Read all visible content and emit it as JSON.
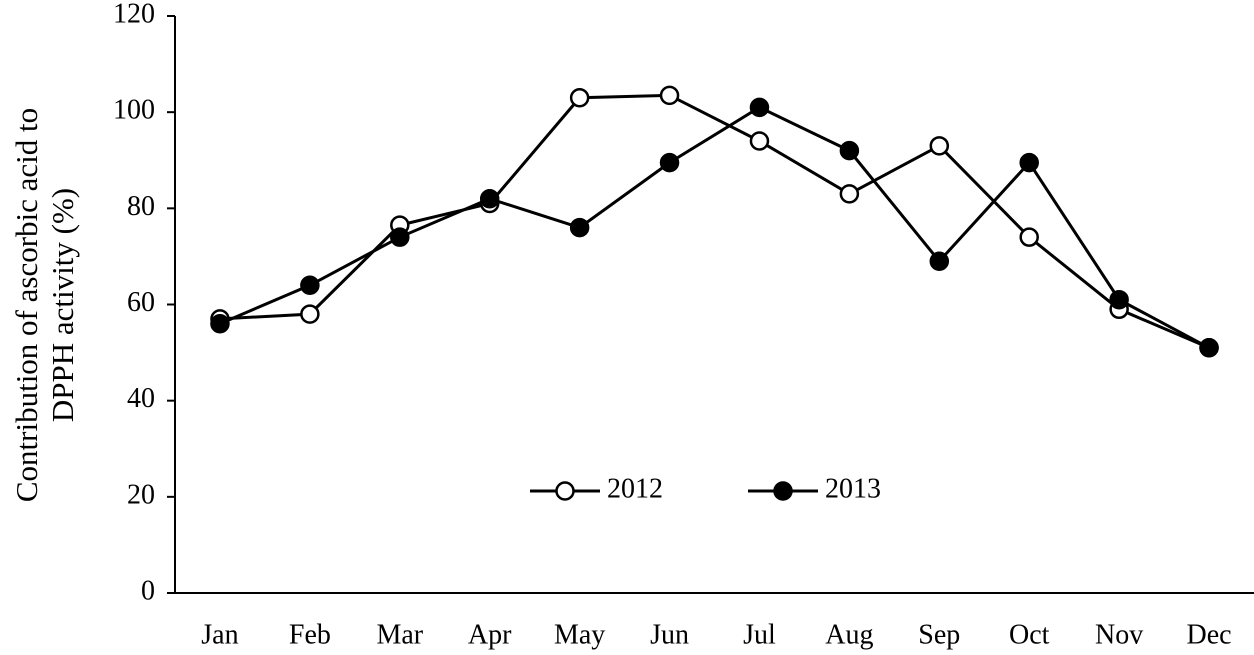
{
  "chart_data": {
    "type": "line",
    "y_label": [
      "Contribution of ascorbic acid to",
      "DPPH activity (%)"
    ],
    "categories": [
      "Jan",
      "Feb",
      "Mar",
      "Apr",
      "May",
      "Jun",
      "Jul",
      "Aug",
      "Sep",
      "Oct",
      "Nov",
      "Dec"
    ],
    "series": [
      {
        "name": "2012",
        "color": "#000000",
        "marker_fill": "#ffffff",
        "values": [
          57,
          58,
          76.5,
          81,
          103,
          103.5,
          94,
          83,
          93,
          74,
          59,
          51
        ]
      },
      {
        "name": "2013",
        "color": "#000000",
        "marker_fill": "#000000",
        "values": [
          56,
          64,
          74,
          82,
          76,
          89.5,
          101,
          92,
          69,
          89.5,
          61,
          51
        ]
      }
    ],
    "ylim": [
      0,
      120
    ],
    "yticks": [
      0,
      20,
      40,
      60,
      80,
      100,
      120
    ],
    "grid": false,
    "legend": "bottom"
  }
}
